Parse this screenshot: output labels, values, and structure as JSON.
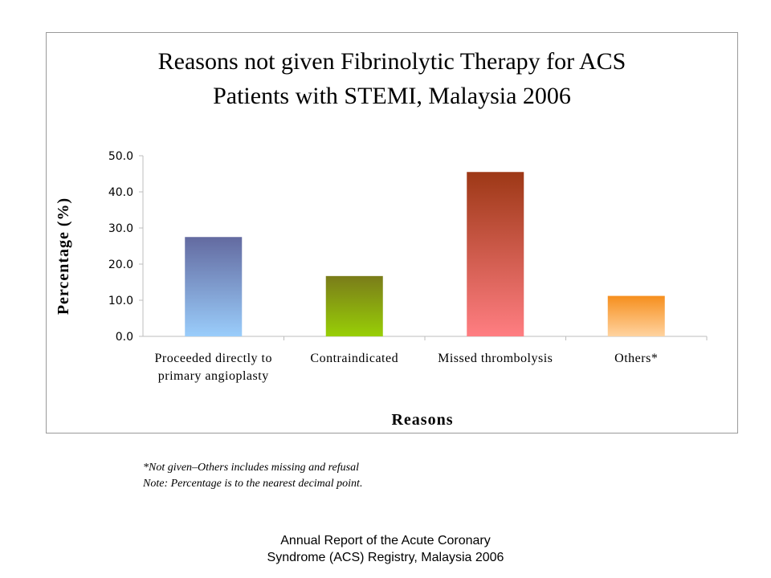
{
  "chart_data": {
    "type": "bar",
    "title": [
      "Reasons not given Fibrinolytic Therapy for ACS",
      "Patients with STEMI, Malaysia 2006"
    ],
    "xlabel": "Reasons",
    "ylabel": "Percentage (%)",
    "categories": [
      [
        "Proceeded directly to",
        "primary angioplasty"
      ],
      [
        "Contraindicated"
      ],
      [
        "Missed thrombolysis"
      ],
      [
        "Others*"
      ]
    ],
    "values": [
      27.5,
      16.7,
      45.5,
      11.2
    ],
    "ylim": [
      0,
      50
    ],
    "yticks": [
      "0.0",
      "10.0",
      "20.0",
      "30.0",
      "40.0",
      "50.0"
    ],
    "grid": false,
    "legend": "none",
    "bar_gradients": [
      [
        "#636aa0",
        "#9acdfb"
      ],
      [
        "#7a7c1a",
        "#98cf06"
      ],
      [
        "#9d3816",
        "#ff7e82"
      ],
      [
        "#f68f1e",
        "#ffd3a0"
      ]
    ]
  },
  "notes": {
    "line1": "*Not given–Others includes missing and refusal",
    "line2": "Note: Percentage is to the nearest decimal point."
  },
  "footer": {
    "line1": "Annual Report of the Acute Coronary",
    "line2": "Syndrome (ACS) Registry, Malaysia 2006"
  }
}
